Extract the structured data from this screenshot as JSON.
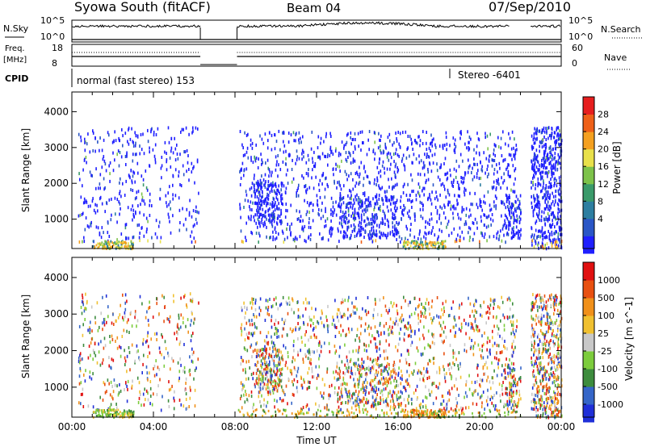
{
  "header": {
    "title": "Syowa South (fitACF)",
    "beam": "Beam 04",
    "date": "07/Sep/2010"
  },
  "sky_panel": {
    "left_label": "N.Sky",
    "right_label": "N.Search",
    "left_ticks": [
      "10^5",
      "10^0"
    ],
    "right_ticks": [
      "10^5",
      "10^0"
    ]
  },
  "freq_panel": {
    "left_label_1": "Freq.",
    "left_label_2": "[MHz]",
    "right_label": "Nave",
    "left_ticks": [
      "18",
      "8"
    ],
    "right_ticks": [
      "60",
      "0"
    ]
  },
  "cpid": {
    "label": "CPID",
    "mode_left": "normal (fast stereo) 153",
    "mode_right": "Stereo -6401"
  },
  "chart_data": [
    {
      "type": "heatmap",
      "name": "power",
      "ylabel": "Slant Range [km]",
      "xlabel": "Time UT",
      "xlim": [
        "00:00",
        "24:00"
      ],
      "ylim": [
        180,
        4550
      ],
      "yticks": [
        1000,
        2000,
        3000,
        4000
      ],
      "xticks": [
        "00:00",
        "04:00",
        "08:00",
        "12:00",
        "16:00",
        "20:00",
        "00:00"
      ],
      "colorbar": {
        "label": "Power [dB]",
        "ticks": [
          "28",
          "24",
          "20",
          "16",
          "12",
          "8",
          "4"
        ],
        "colors": [
          "#1f1fff",
          "#2a56c6",
          "#2d7ea0",
          "#3a9a6a",
          "#7dc24a",
          "#e8e04a",
          "#f4a020",
          "#ee6018",
          "#e61e1e"
        ]
      }
    },
    {
      "type": "heatmap",
      "name": "velocity",
      "ylabel": "Slant Range [km]",
      "xlabel": "Time UT",
      "xlim": [
        "00:00",
        "24:00"
      ],
      "ylim": [
        180,
        4550
      ],
      "yticks": [
        1000,
        2000,
        3000,
        4000
      ],
      "xticks": [
        "00:00",
        "04:00",
        "08:00",
        "12:00",
        "16:00",
        "20:00",
        "00:00"
      ],
      "colorbar": {
        "label": "Velocity [m s^-1]",
        "ticks": [
          "1000",
          "500",
          "100",
          "25",
          "-25",
          "-100",
          "-500",
          "-1000"
        ],
        "colors": [
          "#1f2fd8",
          "#3566c8",
          "#3d8c3d",
          "#7ccc3c",
          "#c8c8c8",
          "#f0c030",
          "#f0901a",
          "#e85010",
          "#e01010"
        ]
      }
    }
  ],
  "axis": {
    "time_label": "Time UT"
  }
}
